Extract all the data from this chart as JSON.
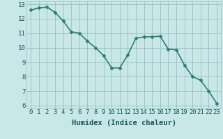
{
  "x": [
    0,
    1,
    2,
    3,
    4,
    5,
    6,
    7,
    8,
    9,
    10,
    11,
    12,
    13,
    14,
    15,
    16,
    17,
    18,
    19,
    20,
    21,
    22,
    23
  ],
  "y": [
    12.6,
    12.75,
    12.8,
    12.45,
    11.85,
    11.1,
    11.0,
    10.45,
    10.0,
    9.45,
    8.6,
    8.6,
    9.5,
    10.65,
    10.75,
    10.75,
    10.8,
    9.9,
    9.85,
    8.8,
    8.0,
    7.75,
    7.0,
    6.15
  ],
  "line_color": "#2e7d6e",
  "marker": "D",
  "marker_size": 2.5,
  "bg_color": "#c8e8e8",
  "grid_color": "#9bbebe",
  "xlabel": "Humidex (Indice chaleur)",
  "xlabel_fontsize": 7.5,
  "ylim": [
    5.8,
    13.2
  ],
  "xlim": [
    -0.5,
    23.5
  ],
  "yticks": [
    6,
    7,
    8,
    9,
    10,
    11,
    12,
    13
  ],
  "xticks": [
    0,
    1,
    2,
    3,
    4,
    5,
    6,
    7,
    8,
    9,
    10,
    11,
    12,
    13,
    14,
    15,
    16,
    17,
    18,
    19,
    20,
    21,
    22,
    23
  ],
  "tick_fontsize": 6.5,
  "line_width": 1.2,
  "figsize": [
    3.2,
    2.0
  ],
  "dpi": 100
}
